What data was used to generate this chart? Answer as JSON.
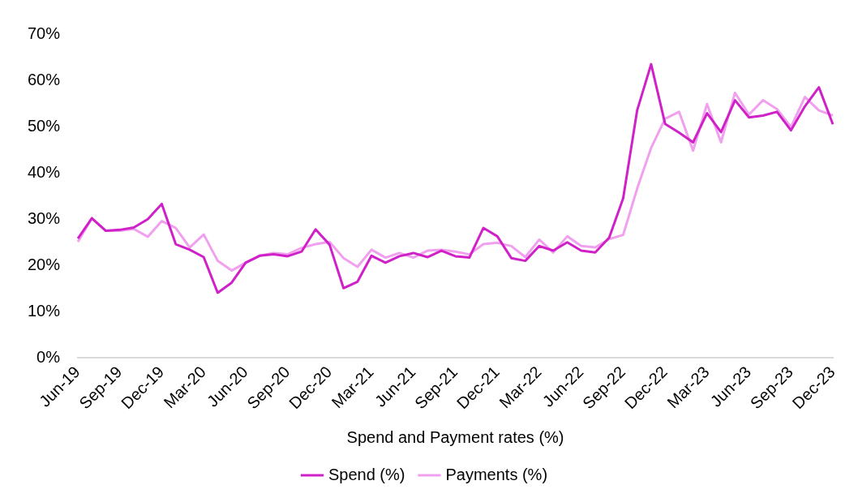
{
  "chart_data": {
    "type": "line",
    "xlabel": "Spend and Payment rates (%)",
    "categories": [
      "Jun-19",
      null,
      null,
      "Sep-19",
      null,
      null,
      "Dec-19",
      null,
      null,
      "Mar-20",
      null,
      null,
      "Jun-20",
      null,
      null,
      "Sep-20",
      null,
      null,
      "Dec-20",
      null,
      null,
      "Mar-21",
      null,
      null,
      "Jun-21",
      null,
      null,
      "Sep-21",
      null,
      null,
      "Dec-21",
      null,
      null,
      "Mar-22",
      null,
      null,
      "Jun-22",
      null,
      null,
      "Sep-22",
      null,
      null,
      "Dec-22",
      null,
      null,
      "Mar-23",
      null,
      null,
      "Jun-23",
      null,
      null,
      "Sep-23",
      null,
      null,
      "Dec-23"
    ],
    "series": [
      {
        "name": "Spend (%)",
        "color": "#d020c8",
        "values": [
          25.8,
          30.2,
          27.5,
          27.7,
          28.2,
          30,
          33.3,
          24.6,
          23.4,
          21.8,
          14.1,
          16.3,
          20.6,
          22.1,
          22.4,
          22,
          23,
          27.8,
          24.5,
          15.1,
          16.5,
          22.1,
          20.6,
          22,
          22.7,
          21.8,
          23.2,
          22,
          21.7,
          28.1,
          26.3,
          21.6,
          21,
          24.2,
          23.2,
          25,
          23.2,
          22.8,
          26,
          34.5,
          53.5,
          63.5,
          50.6,
          48.7,
          46.6,
          52.9,
          48.8,
          55.7,
          52,
          52.4,
          53.2,
          49.2,
          54.4,
          58.5,
          50.5
        ]
      },
      {
        "name": "Payments (%)",
        "color": "#f0a0ee",
        "values": [
          25.1,
          30.2,
          27.5,
          27.5,
          27.9,
          26.2,
          29.6,
          28.1,
          23.9,
          26.7,
          21,
          18.9,
          20.6,
          22.1,
          22.7,
          22.4,
          23.8,
          24.6,
          25.1,
          21.6,
          19.7,
          23.4,
          21.7,
          22.7,
          21.7,
          23.2,
          23.4,
          23,
          22.4,
          24.6,
          24.9,
          24.2,
          21.8,
          25.6,
          22.8,
          26.3,
          24.2,
          23.9,
          25.7,
          26.6,
          36.6,
          45.4,
          51.7,
          53.2,
          44.8,
          54.9,
          46.6,
          57.3,
          52.6,
          55.7,
          53.8,
          49.9,
          56.4,
          53.5,
          52.4
        ]
      }
    ],
    "ylim": [
      0,
      70
    ],
    "yticks": [
      {
        "value": 0,
        "label": "0%"
      },
      {
        "value": 10,
        "label": "10%"
      },
      {
        "value": 20,
        "label": "20%"
      },
      {
        "value": 30,
        "label": "30%"
      },
      {
        "value": 40,
        "label": "40%"
      },
      {
        "value": 50,
        "label": "50%"
      },
      {
        "value": 60,
        "label": "60%"
      },
      {
        "value": 70,
        "label": "70%"
      }
    ],
    "grid": false,
    "legend": "bottom",
    "marker": "none",
    "line_style": "solid"
  }
}
